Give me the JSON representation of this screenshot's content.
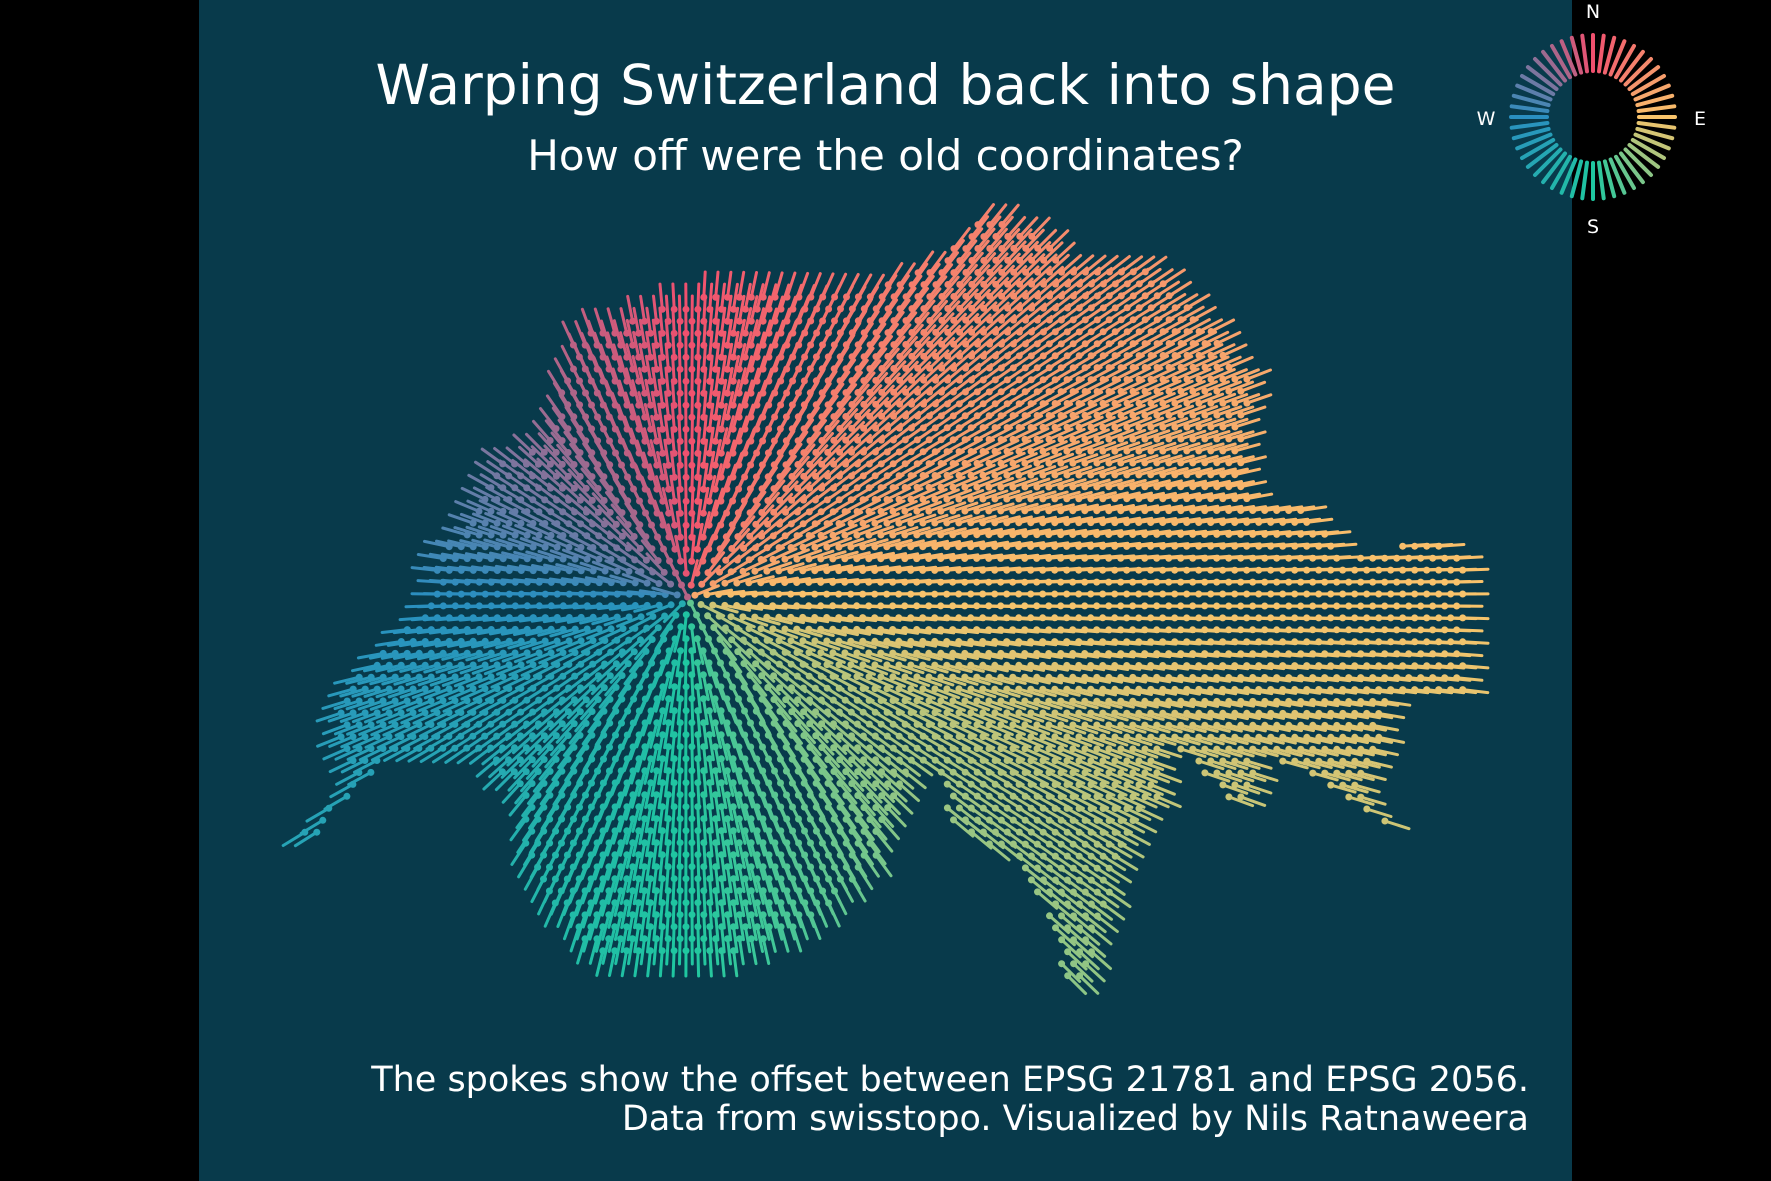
{
  "title": "Warping Switzerland back into shape",
  "subtitle": "How off were the old coordinates?",
  "caption": {
    "line1": "The spokes show the offset between EPSG 21781 and EPSG 2056.",
    "line2": "Data from swisstopo. Visualized by Nils Ratnaweera"
  },
  "compass": {
    "n": "N",
    "e": "E",
    "s": "S",
    "w": "W"
  },
  "colors": {
    "page_background": "#000000",
    "panel_background": "#083a4b",
    "text": "#ffffff",
    "direction_north": "#f0506e",
    "direction_east": "#f9c46b",
    "direction_south": "#1fc7a0",
    "direction_west": "#2a8fc0"
  }
}
